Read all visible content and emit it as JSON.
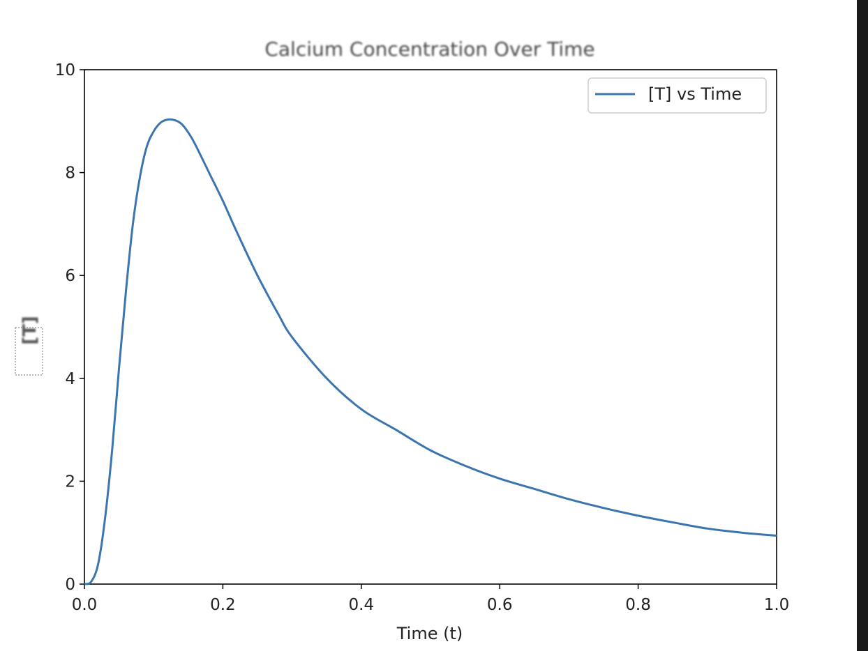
{
  "chart_data": {
    "type": "line",
    "title": "Calcium Concentration Over Time",
    "xlabel": "Time (t)",
    "ylabel": "[T]",
    "xlim": [
      0.0,
      1.0
    ],
    "ylim": [
      0,
      10
    ],
    "xticks": [
      "0.0",
      "0.2",
      "0.4",
      "0.6",
      "0.8",
      "1.0"
    ],
    "yticks": [
      "0",
      "2",
      "4",
      "6",
      "8",
      "10"
    ],
    "grid": false,
    "legend": {
      "placement": "top-right"
    },
    "series": [
      {
        "name": "[T] vs Time",
        "color": "#3b75af",
        "x": [
          0.0,
          0.01,
          0.02,
          0.03,
          0.04,
          0.05,
          0.06,
          0.07,
          0.08,
          0.09,
          0.1,
          0.11,
          0.12,
          0.13,
          0.14,
          0.15,
          0.16,
          0.18,
          0.2,
          0.22,
          0.25,
          0.28,
          0.3,
          0.35,
          0.4,
          0.45,
          0.5,
          0.55,
          0.6,
          0.65,
          0.7,
          0.75,
          0.8,
          0.85,
          0.9,
          0.95,
          1.0
        ],
        "y": [
          0.0,
          0.05,
          0.4,
          1.3,
          2.6,
          4.2,
          5.7,
          7.0,
          7.9,
          8.5,
          8.8,
          8.97,
          9.03,
          9.02,
          8.95,
          8.78,
          8.55,
          8.0,
          7.45,
          6.85,
          6.0,
          5.25,
          4.8,
          4.0,
          3.4,
          3.0,
          2.6,
          2.3,
          2.05,
          1.85,
          1.65,
          1.48,
          1.33,
          1.2,
          1.08,
          1.0,
          0.94
        ]
      }
    ]
  }
}
